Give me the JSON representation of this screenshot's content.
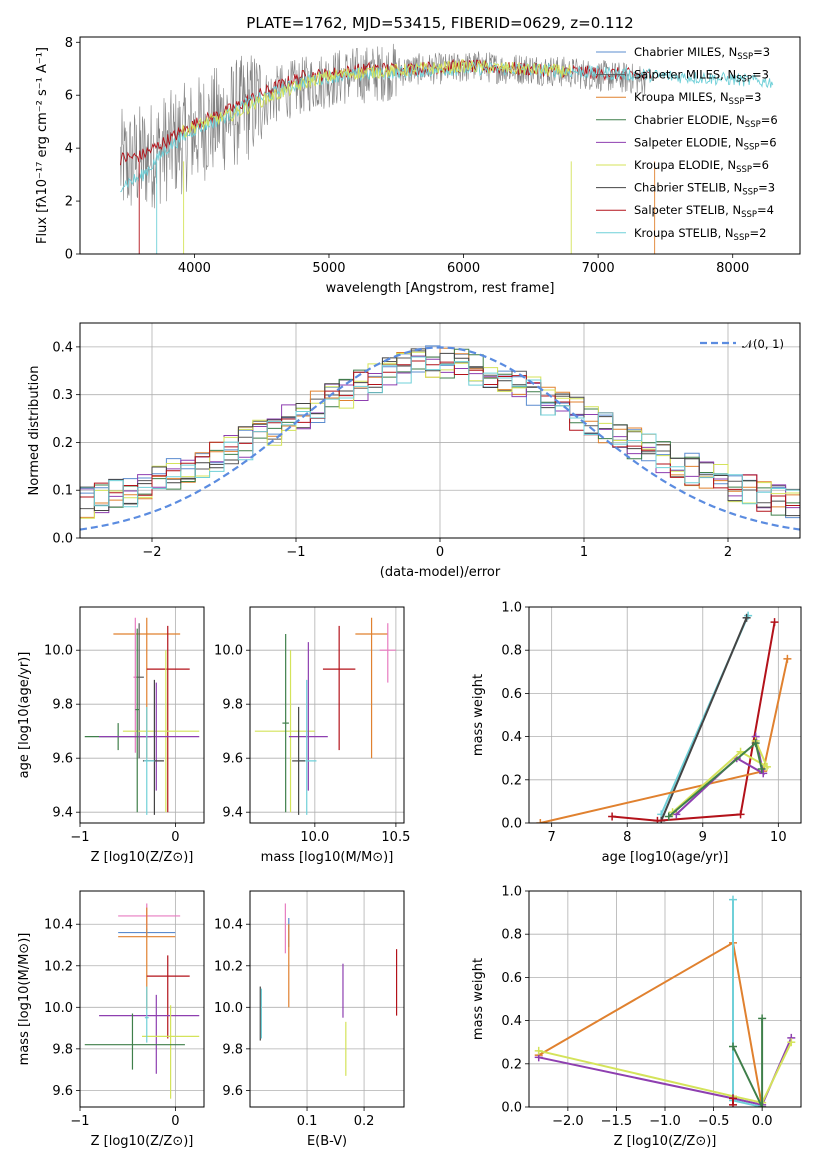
{
  "colors": {
    "chabrier_miles": "#5b8ccf",
    "salpeter_miles": "#5a5a5a",
    "kroupa_miles": "#e0812f",
    "chabrier_elodie": "#3f7f4a",
    "salpeter_elodie": "#8e3fb0",
    "kroupa_elodie": "#d4e35a",
    "chabrier_stelib": "#444444",
    "salpeter_stelib": "#b3121a",
    "kroupa_stelib": "#6fd0d8",
    "pink": "#e87bc0",
    "normal_curve": "#5b8ce0",
    "observed": "#808080"
  },
  "chart_data": [
    {
      "type": "line",
      "title": "PLATE=1762, MJD=53415, FIBERID=0629, z=0.112",
      "xlabel": "wavelength [Angstrom, rest frame]",
      "ylabel": "Flux [fλ10⁻¹⁷ erg cm⁻² s⁻¹ A⁻¹]",
      "xlim": [
        3150,
        8500
      ],
      "ylim": [
        0,
        8.2
      ],
      "xticks": [
        4000,
        5000,
        6000,
        7000,
        8000
      ],
      "yticks": [
        0,
        2,
        4,
        6,
        8
      ],
      "legend_placement": "right",
      "legend": [
        {
          "label": "Chabrier MILES, N_SSP=3",
          "color_key": "chabrier_miles"
        },
        {
          "label": "Salpeter MILES, N_SSP=3",
          "color_key": "salpeter_miles"
        },
        {
          "label": "Kroupa MILES, N_SSP=3",
          "color_key": "kroupa_miles"
        },
        {
          "label": "Chabrier ELODIE, N_SSP=6",
          "color_key": "chabrier_elodie"
        },
        {
          "label": "Salpeter ELODIE, N_SSP=6",
          "color_key": "salpeter_elodie"
        },
        {
          "label": "Kroupa ELODIE, N_SSP=6",
          "color_key": "kroupa_elodie"
        },
        {
          "label": "Chabrier STELIB, N_SSP=3",
          "color_key": "chabrier_stelib"
        },
        {
          "label": "Salpeter STELIB, N_SSP=4",
          "color_key": "salpeter_stelib"
        },
        {
          "label": "Kroupa STELIB, N_SSP=2",
          "color_key": "kroupa_stelib"
        }
      ],
      "series": [
        {
          "color_key": "observed",
          "x": [
            3500,
            3700,
            3900,
            4100,
            4300,
            4500,
            4700,
            4900,
            5100,
            5300,
            5500,
            5700,
            5900,
            6100,
            6300,
            6500,
            6700,
            6900,
            7100,
            7300
          ],
          "y": [
            3.4,
            3.8,
            4.3,
            4.9,
            5.3,
            5.8,
            6.2,
            6.5,
            6.7,
            6.8,
            6.9,
            7.0,
            7.0,
            7.1,
            7.0,
            7.0,
            6.9,
            6.8,
            6.7,
            6.6
          ]
        },
        {
          "color_key": "salpeter_stelib",
          "x": [
            3450,
            3600,
            3800,
            4000,
            4200,
            4400,
            4600,
            4800,
            5000,
            5300,
            5600,
            6000,
            6400,
            6800,
            7200,
            7400
          ],
          "y": [
            3.6,
            3.7,
            4.3,
            4.9,
            5.3,
            5.8,
            6.3,
            6.7,
            6.8,
            7.0,
            7.0,
            7.1,
            7.0,
            6.9,
            6.8,
            6.7
          ]
        },
        {
          "color_key": "kroupa_stelib",
          "x": [
            3450,
            3600,
            3800,
            4000,
            4200,
            4400,
            4600,
            4800,
            5000,
            5300,
            5600,
            6000,
            6400,
            6800,
            7200,
            7600,
            8000,
            8300
          ],
          "y": [
            2.6,
            2.9,
            4.0,
            4.7,
            5.1,
            5.7,
            6.1,
            6.5,
            6.7,
            6.8,
            6.9,
            7.0,
            7.0,
            6.9,
            6.8,
            6.7,
            6.6,
            6.5
          ]
        },
        {
          "color_key": "kroupa_elodie",
          "x": [
            3900,
            4100,
            4300,
            4500,
            4700,
            4900,
            5100,
            5400,
            5700,
            6000,
            6400,
            6800
          ],
          "y": [
            4.6,
            5.0,
            5.3,
            5.8,
            6.2,
            6.6,
            6.8,
            6.9,
            7.0,
            7.1,
            7.0,
            6.9
          ]
        }
      ]
    },
    {
      "type": "area",
      "xlabel": "(data-model)/error",
      "ylabel": "Normed distribution",
      "xlim": [
        -2.5,
        2.5
      ],
      "ylim": [
        0,
        0.45
      ],
      "xticks": [
        -2,
        -1,
        0,
        1,
        2
      ],
      "yticks": [
        0.0,
        0.1,
        0.2,
        0.3,
        0.4
      ],
      "grid": true,
      "legend_placement": "top-right",
      "legend": [
        {
          "label": "𝒩(0, 1)",
          "color_key": "normal_curve"
        }
      ],
      "bin_width": 0.1,
      "noise_amplitude": 0.035
    },
    {
      "type": "scatter",
      "xlabel": "Z [log10(Z/Z⊙)]",
      "ylabel": "age  [log10(age/yr)]",
      "xlim": [
        -1.0,
        0.3
      ],
      "ylim": [
        9.36,
        10.16
      ],
      "xticks": [
        -1,
        0
      ],
      "yticks": [
        9.4,
        9.6,
        9.8,
        10.0
      ],
      "grid": true,
      "errorbars": [
        {
          "color_key": "kroupa_miles",
          "x": -0.3,
          "xerr": [
            0.35,
            0.35
          ],
          "y": 10.06,
          "yerr": [
            0.46,
            0.06
          ]
        },
        {
          "color_key": "salpeter_miles",
          "x": -0.38,
          "xerr": [
            0.05,
            0.05
          ],
          "y": 9.9,
          "yerr": [
            0.3,
            0.2
          ]
        },
        {
          "color_key": "salpeter_stelib",
          "x": -0.08,
          "xerr": [
            0.22,
            0.23
          ],
          "y": 9.93,
          "yerr": [
            0.53,
            0.16
          ]
        },
        {
          "color_key": "pink",
          "x": -0.42,
          "xerr": [
            0.02,
            0.02
          ],
          "y": 9.9,
          "yerr": [
            0.28,
            0.22
          ]
        },
        {
          "color_key": "kroupa_elodie",
          "x": -0.1,
          "xerr": [
            0.45,
            0.35
          ],
          "y": 9.7,
          "yerr": [
            0.3,
            0.3
          ]
        },
        {
          "color_key": "chabrier_elodie",
          "x": -0.6,
          "xerr": [
            0.35,
            0.35
          ],
          "y": 9.68,
          "yerr": [
            0.05,
            0.05
          ]
        },
        {
          "color_key": "salpeter_elodie",
          "x": -0.2,
          "xerr": [
            0.6,
            0.45
          ],
          "y": 9.68,
          "yerr": [
            0.2,
            0.2
          ]
        },
        {
          "color_key": "chabrier_stelib",
          "x": -0.22,
          "xerr": [
            0.12,
            0.1
          ],
          "y": 9.59,
          "yerr": [
            0.2,
            0.3
          ]
        },
        {
          "color_key": "kroupa_stelib",
          "x": -0.3,
          "xerr": [
            0.03,
            0.08
          ],
          "y": 9.59,
          "yerr": [
            0.2,
            0.2
          ]
        },
        {
          "color_key": "chabrier_elodie",
          "x": -0.4,
          "xerr": [
            0.02,
            0.02
          ],
          "y": 9.78,
          "yerr": [
            0.38,
            0.3
          ]
        }
      ]
    },
    {
      "type": "scatter",
      "xlabel": "mass [log10(M/M⊙)]",
      "xlim": [
        9.6,
        10.55
      ],
      "ylim": [
        9.36,
        10.16
      ],
      "xticks": [
        10.0,
        10.5
      ],
      "yticks": [
        9.4,
        9.6,
        9.8,
        10.0
      ],
      "grid": true,
      "errorbars": [
        {
          "color_key": "kroupa_miles",
          "x": 10.35,
          "xerr": [
            0.1,
            0.1
          ],
          "y": 10.06,
          "yerr": [
            0.46,
            0.06
          ]
        },
        {
          "color_key": "salpeter_stelib",
          "x": 10.15,
          "xerr": [
            0.1,
            0.1
          ],
          "y": 9.93,
          "yerr": [
            0.3,
            0.16
          ]
        },
        {
          "color_key": "pink",
          "x": 10.45,
          "xerr": [
            0.05,
            0.05
          ],
          "y": 10.0,
          "yerr": [
            0.12,
            0.1
          ]
        },
        {
          "color_key": "kroupa_elodie",
          "x": 9.85,
          "xerr": [
            0.22,
            0.15
          ],
          "y": 9.7,
          "yerr": [
            0.3,
            0.3
          ]
        },
        {
          "color_key": "salpeter_elodie",
          "x": 9.96,
          "xerr": [
            0.12,
            0.12
          ],
          "y": 9.68,
          "yerr": [
            0.2,
            0.35
          ]
        },
        {
          "color_key": "chabrier_elodie",
          "x": 9.82,
          "xerr": [
            0.02,
            0.02
          ],
          "y": 9.73,
          "yerr": [
            0.33,
            0.33
          ]
        },
        {
          "color_key": "kroupa_stelib",
          "x": 9.95,
          "xerr": [
            0.05,
            0.06
          ],
          "y": 9.59,
          "yerr": [
            0.2,
            0.3
          ]
        },
        {
          "color_key": "chabrier_stelib",
          "x": 9.9,
          "xerr": [
            0.04,
            0.04
          ],
          "y": 9.59,
          "yerr": [
            0.2,
            0.2
          ]
        }
      ]
    },
    {
      "type": "line",
      "xlabel": "age  [log10(age/yr)]",
      "ylabel": "mass weight",
      "xlim": [
        6.7,
        10.3
      ],
      "ylim": [
        0,
        1.0
      ],
      "xticks": [
        7,
        8,
        9,
        10
      ],
      "yticks": [
        0.0,
        0.2,
        0.4,
        0.6,
        0.8,
        1.0
      ],
      "grid": true,
      "series": [
        {
          "color_key": "kroupa_stelib",
          "x": [
            8.45,
            9.6
          ],
          "y": [
            0.04,
            0.96
          ]
        },
        {
          "color_key": "chabrier_stelib",
          "x": [
            8.45,
            9.58
          ],
          "y": [
            0.01,
            0.95
          ]
        },
        {
          "color_key": "salpeter_stelib",
          "x": [
            7.8,
            8.4,
            9.5,
            9.95
          ],
          "y": [
            0.03,
            0.01,
            0.04,
            0.93
          ]
        },
        {
          "color_key": "kroupa_miles",
          "x": [
            6.85,
            9.8,
            10.12
          ],
          "y": [
            0.0,
            0.24,
            0.76
          ]
        },
        {
          "color_key": "salpeter_elodie",
          "x": [
            8.65,
            9.45,
            9.8,
            9.7
          ],
          "y": [
            0.04,
            0.3,
            0.23,
            0.4
          ]
        },
        {
          "color_key": "kroupa_elodie",
          "x": [
            8.6,
            9.5,
            9.85,
            9.7
          ],
          "y": [
            0.05,
            0.33,
            0.26,
            0.38
          ]
        },
        {
          "color_key": "chabrier_elodie",
          "x": [
            8.55,
            9.7,
            9.78
          ],
          "y": [
            0.03,
            0.37,
            0.25
          ]
        }
      ]
    },
    {
      "type": "scatter",
      "xlabel": "Z [log10(Z/Z⊙)]",
      "ylabel": "mass [log10(M/M⊙)]",
      "xlim": [
        -1.0,
        0.3
      ],
      "ylim": [
        9.52,
        10.56
      ],
      "xticks": [
        -1,
        0
      ],
      "yticks": [
        9.6,
        9.8,
        10.0,
        10.2,
        10.4
      ],
      "grid": true,
      "errorbars": [
        {
          "color_key": "pink",
          "x": -0.3,
          "xerr": [
            0.3,
            0.35
          ],
          "y": 10.44,
          "yerr": [
            0.06,
            0.06
          ]
        },
        {
          "color_key": "chabrier_miles",
          "x": -0.3,
          "xerr": [
            0.3,
            0.3
          ],
          "y": 10.36,
          "yerr": [
            0.02,
            0.02
          ]
        },
        {
          "color_key": "kroupa_miles",
          "x": -0.3,
          "xerr": [
            0.3,
            0.3
          ],
          "y": 10.34,
          "yerr": [
            0.35,
            0.14
          ]
        },
        {
          "color_key": "salpeter_stelib",
          "x": -0.08,
          "xerr": [
            0.22,
            0.23
          ],
          "y": 10.15,
          "yerr": [
            0.3,
            0.1
          ]
        },
        {
          "color_key": "salpeter_elodie",
          "x": -0.2,
          "xerr": [
            0.6,
            0.45
          ],
          "y": 9.96,
          "yerr": [
            0.28,
            0.1
          ]
        },
        {
          "color_key": "kroupa_elodie",
          "x": -0.05,
          "xerr": [
            0.3,
            0.3
          ],
          "y": 9.86,
          "yerr": [
            0.3,
            0.15
          ]
        },
        {
          "color_key": "chabrier_elodie",
          "x": -0.45,
          "xerr": [
            0.5,
            0.55
          ],
          "y": 9.82,
          "yerr": [
            0.12,
            0.15
          ]
        },
        {
          "color_key": "kroupa_stelib",
          "x": -0.3,
          "xerr": [
            0.02,
            0.02
          ],
          "y": 9.95,
          "yerr": [
            0.12,
            0.15
          ]
        }
      ]
    },
    {
      "type": "scatter",
      "xlabel": "E(B-V)",
      "xlim": [
        0.0,
        0.27
      ],
      "ylim": [
        9.52,
        10.56
      ],
      "xticks": [
        0.1,
        0.2
      ],
      "yticks": [
        9.6,
        9.8,
        10.0,
        10.2,
        10.4
      ],
      "grid": true,
      "errorbars": [
        {
          "color_key": "pink",
          "x": 0.062,
          "xerr": [
            0.0,
            0.0
          ],
          "y": 10.38,
          "yerr": [
            0.12,
            0.12
          ]
        },
        {
          "color_key": "chabrier_miles",
          "x": 0.068,
          "xerr": [
            0.0,
            0.0
          ],
          "y": 10.36,
          "yerr": [
            0.07,
            0.07
          ]
        },
        {
          "color_key": "kroupa_miles",
          "x": 0.068,
          "xerr": [
            0.0,
            0.0
          ],
          "y": 10.2,
          "yerr": [
            0.2,
            0.2
          ]
        },
        {
          "color_key": "chabrier_stelib",
          "x": 0.018,
          "xerr": [
            0.0,
            0.0
          ],
          "y": 9.97,
          "yerr": [
            0.13,
            0.13
          ]
        },
        {
          "color_key": "kroupa_stelib",
          "x": 0.02,
          "xerr": [
            0.0,
            0.0
          ],
          "y": 9.97,
          "yerr": [
            0.12,
            0.12
          ]
        },
        {
          "color_key": "salpeter_elodie",
          "x": 0.163,
          "xerr": [
            0.0,
            0.0
          ],
          "y": 10.08,
          "yerr": [
            0.13,
            0.13
          ]
        },
        {
          "color_key": "kroupa_elodie",
          "x": 0.168,
          "xerr": [
            0.0,
            0.0
          ],
          "y": 9.8,
          "yerr": [
            0.13,
            0.13
          ]
        },
        {
          "color_key": "salpeter_stelib",
          "x": 0.257,
          "xerr": [
            0.0,
            0.0
          ],
          "y": 10.12,
          "yerr": [
            0.16,
            0.16
          ]
        }
      ]
    },
    {
      "type": "line",
      "xlabel": "Z [log10(Z/Z⊙)]",
      "ylabel": "mass weight",
      "xlim": [
        -2.4,
        0.4
      ],
      "ylim": [
        0,
        1.0
      ],
      "xticks": [
        -2.0,
        -1.5,
        -1.0,
        -0.5,
        0.0
      ],
      "yticks": [
        0.0,
        0.2,
        0.4,
        0.6,
        0.8,
        1.0
      ],
      "grid": true,
      "series": [
        {
          "color_key": "kroupa_miles",
          "x": [
            -2.3,
            -0.3,
            0.0
          ],
          "y": [
            0.24,
            0.76,
            0.0
          ]
        },
        {
          "color_key": "salpeter_elodie",
          "x": [
            -2.3,
            -0.3,
            0.0,
            0.3
          ],
          "y": [
            0.23,
            0.04,
            0.01,
            0.32
          ]
        },
        {
          "color_key": "kroupa_elodie",
          "x": [
            -2.3,
            -0.3,
            0.0,
            0.3
          ],
          "y": [
            0.26,
            0.05,
            0.02,
            0.3
          ]
        },
        {
          "color_key": "kroupa_stelib",
          "x": [
            -0.3,
            -0.3,
            0.0
          ],
          "y": [
            0.96,
            0.03,
            0.0
          ]
        },
        {
          "color_key": "chabrier_elodie",
          "x": [
            -0.3,
            0.0,
            0.0
          ],
          "y": [
            0.28,
            0.0,
            0.41
          ]
        },
        {
          "color_key": "salpeter_stelib",
          "x": [
            -0.3,
            -0.3
          ],
          "y": [
            0.01,
            0.04
          ]
        }
      ]
    }
  ]
}
